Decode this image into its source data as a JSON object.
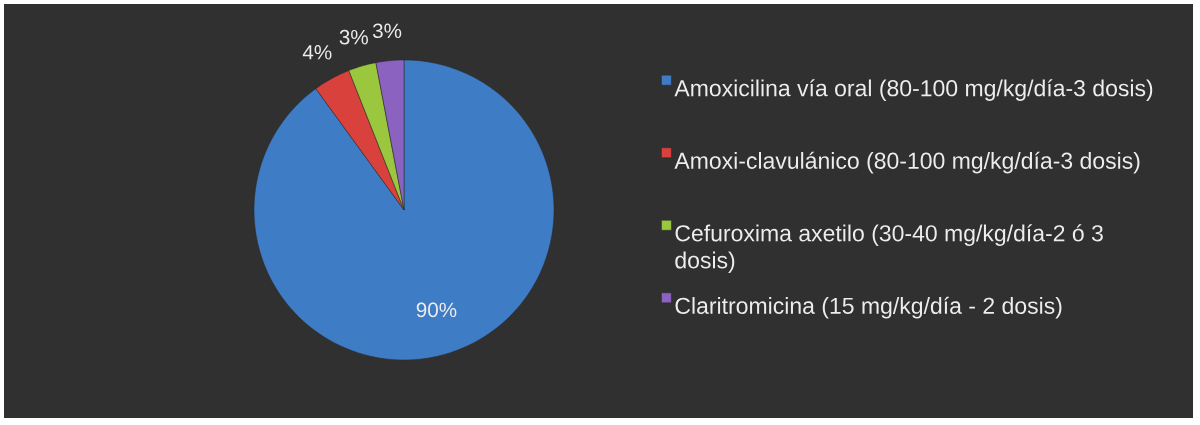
{
  "chart_data": {
    "type": "pie",
    "categories": [
      "Amoxicilina vía oral (80-100 mg/kg/día-3 dosis)",
      "Amoxi-clavulánico (80-100 mg/kg/día-3 dosis)",
      "Cefuroxima axetilo (30-40 mg/kg/día-2 ó 3 dosis)",
      "Claritromicina (15 mg/kg/día - 2 dosis)"
    ],
    "values": [
      90,
      4,
      3,
      3
    ],
    "colors": [
      "#3f7cc6",
      "#d8413c",
      "#9bc73f",
      "#8b62c0"
    ],
    "value_labels": [
      "90%",
      "4%",
      "3%",
      "3%"
    ],
    "legend": "right"
  }
}
